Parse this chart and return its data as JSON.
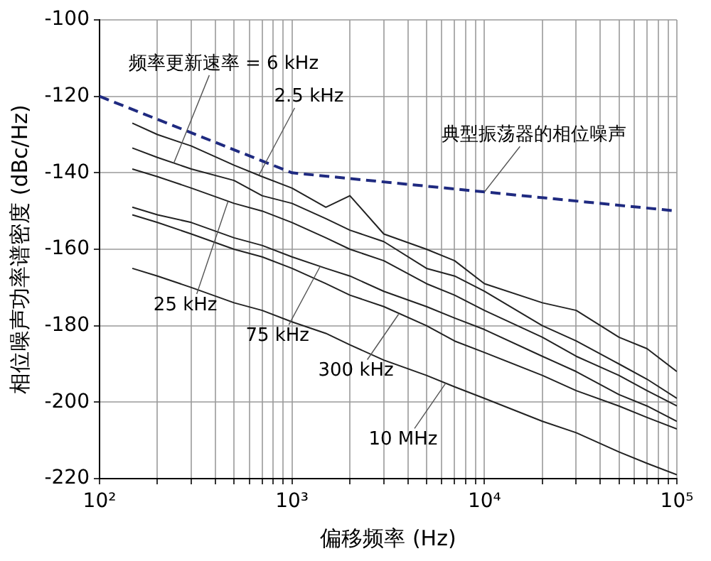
{
  "chart_data": {
    "type": "line",
    "xlabel": "偏移频率 (Hz)",
    "ylabel": "相位噪声功率谱密度 (dBc/Hz)",
    "log": "x",
    "grid": true,
    "legend": false,
    "marker": "none",
    "xlim": [
      100,
      100000
    ],
    "ylim": [
      -220,
      -100
    ],
    "xticks": [
      {
        "value": 100,
        "label": "10²"
      },
      {
        "value": 200,
        "label": null
      },
      {
        "value": 300,
        "label": null
      },
      {
        "value": 400,
        "label": null
      },
      {
        "value": 500,
        "label": null
      },
      {
        "value": 600,
        "label": null
      },
      {
        "value": 700,
        "label": null
      },
      {
        "value": 800,
        "label": null
      },
      {
        "value": 900,
        "label": null
      },
      {
        "value": 1000,
        "label": "10³"
      },
      {
        "value": 2000,
        "label": null
      },
      {
        "value": 3000,
        "label": null
      },
      {
        "value": 4000,
        "label": null
      },
      {
        "value": 5000,
        "label": null
      },
      {
        "value": 6000,
        "label": null
      },
      {
        "value": 7000,
        "label": null
      },
      {
        "value": 8000,
        "label": null
      },
      {
        "value": 9000,
        "label": null
      },
      {
        "value": 10000,
        "label": "10⁴"
      },
      {
        "value": 20000,
        "label": null
      },
      {
        "value": 30000,
        "label": null
      },
      {
        "value": 40000,
        "label": null
      },
      {
        "value": 50000,
        "label": null
      },
      {
        "value": 60000,
        "label": null
      },
      {
        "value": 70000,
        "label": null
      },
      {
        "value": 80000,
        "label": null
      },
      {
        "value": 90000,
        "label": null
      },
      {
        "value": 100000,
        "label": "10⁵"
      }
    ],
    "yticks": [
      -220,
      -200,
      -180,
      -160,
      -140,
      -120,
      -100
    ],
    "x": [
      148,
      200,
      300,
      500,
      700,
      1000,
      1500,
      2000,
      3000,
      5000,
      7000,
      10000,
      20000,
      30000,
      50000,
      70000,
      100000
    ],
    "series": [
      {
        "color": "#1f2a80",
        "line_style": "dashed",
        "x": [
          100,
          1000,
          100000
        ],
        "values": [
          -120,
          -140,
          -150
        ]
      },
      {
        "color": "#222222",
        "line_style": "solid",
        "values": [
          -127,
          -130,
          -133,
          -138,
          -141,
          -144,
          -149,
          -146,
          -156,
          -160,
          -163,
          -169,
          -174,
          -176,
          -183,
          -186,
          -192
        ]
      },
      {
        "color": "#222222",
        "line_style": "solid",
        "values": [
          -133.5,
          -136,
          -139,
          -142,
          -146,
          -148,
          -152,
          -155,
          -158,
          -165,
          -167,
          -171,
          -180,
          -184,
          -190,
          -194,
          -199
        ]
      },
      {
        "color": "#222222",
        "line_style": "solid",
        "values": [
          -139,
          -141,
          -144,
          -148,
          -150,
          -153,
          -157,
          -160,
          -163,
          -169,
          -172,
          -176,
          -183,
          -188,
          -193,
          -197,
          -201
        ]
      },
      {
        "color": "#222222",
        "line_style": "solid",
        "values": [
          -149,
          -151,
          -153,
          -157,
          -159,
          -162,
          -165,
          -167,
          -171,
          -175,
          -178,
          -181,
          -188,
          -192,
          -198,
          -201,
          -205
        ]
      },
      {
        "color": "#222222",
        "line_style": "solid",
        "values": [
          -151,
          -153,
          -156,
          -160,
          -162,
          -165,
          -169,
          -172,
          -175,
          -180,
          -184,
          -187,
          -193,
          -197,
          -201,
          -204,
          -207
        ]
      },
      {
        "color": "#222222",
        "line_style": "solid",
        "values": [
          -165,
          -167,
          -170,
          -174,
          -176,
          -179,
          -182,
          -185,
          -189,
          -193,
          -196,
          -199,
          -205,
          -208,
          -213,
          -216,
          -219
        ]
      }
    ],
    "annotations": [
      {
        "text": "频率更新速率 = 6 kHz",
        "x": 243,
        "y": -137.5
      },
      {
        "text": "2.5 kHz",
        "x": 675,
        "y": -140.5
      },
      {
        "text": "典型振荡器的相位噪声",
        "x": 10000,
        "y": -145
      },
      {
        "text": "25 kHz",
        "x": 465,
        "y": -147.5
      },
      {
        "text": "75 kHz",
        "x": 1400,
        "y": -164.5
      },
      {
        "text": "300 kHz",
        "x": 3580,
        "y": -177
      },
      {
        "text": "10 MHz",
        "x": 6300,
        "y": -195
      }
    ]
  }
}
